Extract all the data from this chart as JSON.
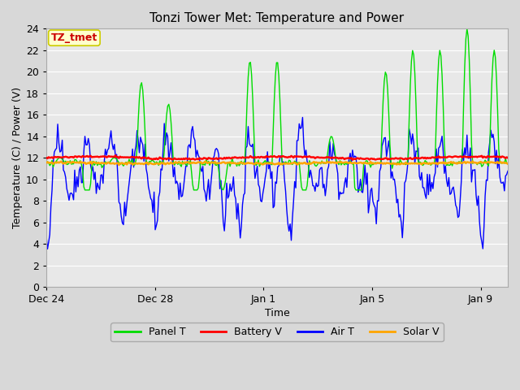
{
  "title": "Tonzi Tower Met: Temperature and Power",
  "xlabel": "Time",
  "ylabel": "Temperature (C) / Power (V)",
  "ylim": [
    0,
    24
  ],
  "yticks": [
    0,
    2,
    4,
    6,
    8,
    10,
    12,
    14,
    16,
    18,
    20,
    22,
    24
  ],
  "xtick_labels": [
    "Dec 24",
    "Dec 28",
    "Jan 1",
    "Jan 5",
    "Jan 9"
  ],
  "xtick_positions": [
    0,
    4,
    8,
    12,
    16
  ],
  "xlim": [
    0,
    17
  ],
  "fig_facecolor": "#d8d8d8",
  "ax_facecolor": "#e8e8e8",
  "grid_color": "#ffffff",
  "panel_color": "#00dd00",
  "battery_color": "#ff0000",
  "air_color": "#0000ff",
  "solar_color": "#ffa500",
  "annotation_text": "TZ_tmet",
  "annotation_fg": "#cc0000",
  "annotation_bg": "#ffffcc",
  "annotation_border": "#cccc00",
  "battery_level": 12.0,
  "solar_level": 11.5
}
